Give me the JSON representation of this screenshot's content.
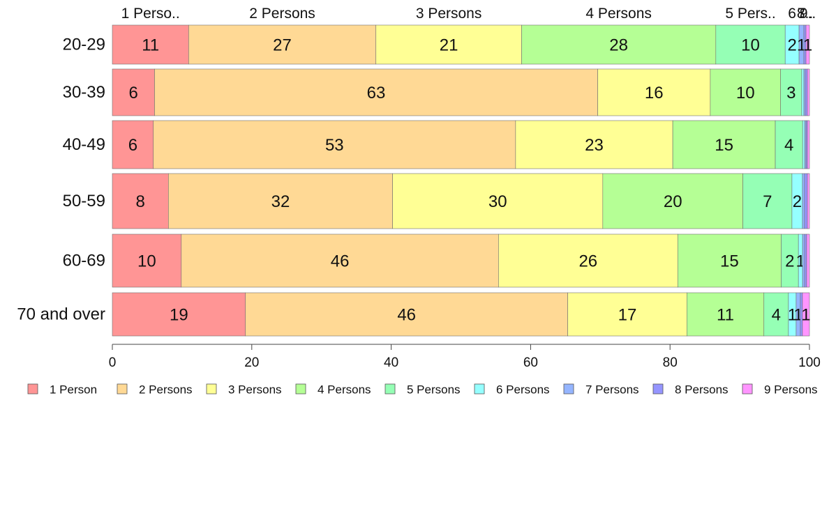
{
  "chart_data": {
    "type": "bar",
    "orientation": "horizontal",
    "stacked": true,
    "categories": [
      "20-29",
      "30-39",
      "40-49",
      "50-59",
      "60-69",
      "70 and over"
    ],
    "series": [
      {
        "name": "1 Person",
        "top_label": "1 Perso..",
        "color": "#ff9595",
        "values": [
          11,
          6,
          6,
          8,
          10,
          19
        ],
        "labels": [
          "11",
          "6",
          "6",
          "8",
          "10",
          "19"
        ]
      },
      {
        "name": "2 Persons",
        "top_label": "2 Persons",
        "color": "#ffd995",
        "values": [
          27,
          63,
          53,
          32,
          46,
          46
        ],
        "labels": [
          "27",
          "63",
          "53",
          "32",
          "46",
          "46"
        ]
      },
      {
        "name": "3 Persons",
        "top_label": "3 Persons",
        "color": "#ffff95",
        "values": [
          21,
          16,
          23,
          30,
          26,
          17
        ],
        "labels": [
          "21",
          "16",
          "23",
          "30",
          "26",
          "17"
        ]
      },
      {
        "name": "4 Persons",
        "top_label": "4 Persons",
        "color": "#b5ff95",
        "values": [
          28,
          10,
          15,
          20,
          15,
          11
        ],
        "labels": [
          "28",
          "10",
          "15",
          "20",
          "15",
          "11"
        ]
      },
      {
        "name": "5 Persons",
        "top_label": "5 Pers..",
        "color": "#95ffb5",
        "values": [
          10,
          3,
          4,
          7,
          2.5,
          3.5
        ],
        "labels": [
          "10",
          "3",
          "4",
          "7",
          "2",
          "4"
        ]
      },
      {
        "name": "6 Persons",
        "top_label": "6",
        "color": "#95ffff",
        "values": [
          2,
          0.3,
          0.3,
          1.5,
          0.6,
          1.1
        ],
        "labels": [
          "2",
          "",
          "",
          "2",
          "1",
          "1"
        ]
      },
      {
        "name": "7 Persons",
        "top_label": "7",
        "color": "#95b5ff",
        "values": [
          0.7,
          0.2,
          0.2,
          0.3,
          0.3,
          0.6
        ],
        "labels": [
          "1",
          "",
          "",
          "",
          "",
          "1"
        ]
      },
      {
        "name": "8 Persons",
        "top_label": "8..",
        "color": "#9595ff",
        "values": [
          0.3,
          0.3,
          0.2,
          0.4,
          0.3,
          0.3
        ],
        "labels": [
          "",
          "",
          "",
          "",
          "",
          ""
        ]
      },
      {
        "name": "9 Persons",
        "top_label": "9..",
        "color": "#ff95ff",
        "values": [
          0.5,
          0.3,
          0.3,
          0.3,
          0.4,
          1
        ],
        "labels": [
          "1",
          "",
          "",
          "",
          "",
          "1"
        ]
      }
    ],
    "xlim": [
      0,
      100
    ],
    "x_ticks": [
      "0",
      "20",
      "40",
      "60",
      "80",
      "100"
    ],
    "title": "",
    "xlabel": "",
    "ylabel": "",
    "grid": false,
    "legend_position": "bottom"
  }
}
